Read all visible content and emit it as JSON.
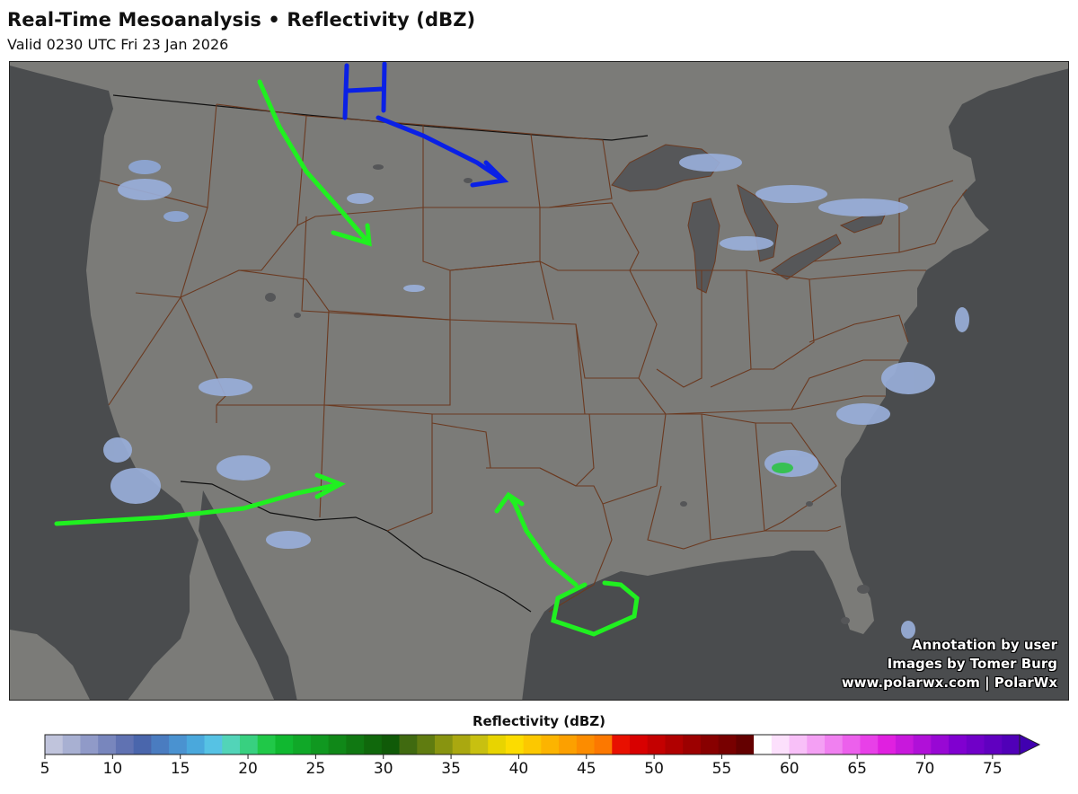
{
  "header": {
    "title": "Real-Time Mesoanalysis • Reflectivity (dBZ)",
    "subtitle": "Valid 0230 UTC Fri 23 Jan 2026"
  },
  "map": {
    "region": "Continental United States",
    "land_color": "#7b7b78",
    "water_color": "#4a4c4e",
    "border_color": "#6b3a21",
    "annotations": {
      "high_pressure_label": "H",
      "high_color": "#0a20e6",
      "arrow_color": "#20f020"
    }
  },
  "credits": {
    "line1": "Annotation by user",
    "line2": "Images by Tomer Burg",
    "line3": "www.polarwx.com | PolarWx"
  },
  "colorbar": {
    "title": "Reflectivity (dBZ)",
    "ticks": [
      "5",
      "10",
      "15",
      "20",
      "25",
      "30",
      "35",
      "40",
      "45",
      "50",
      "55",
      "60",
      "65",
      "70",
      "75"
    ],
    "min": 5,
    "max": 77,
    "colors": [
      "#c0c4dc",
      "#a8b0d2",
      "#909ac8",
      "#7886bd",
      "#6072b2",
      "#4a66ac",
      "#4a7cc0",
      "#4a92d0",
      "#4aa8dc",
      "#56c2e4",
      "#52d4b8",
      "#38d080",
      "#20c848",
      "#10b830",
      "#10a828",
      "#109820",
      "#108818",
      "#107812",
      "#10680c",
      "#105a08",
      "#406a10",
      "#607c10",
      "#889410",
      "#aaa810",
      "#c8c010",
      "#e8d400",
      "#fcdc00",
      "#fcc800",
      "#fcb400",
      "#fca000",
      "#fc8c00",
      "#fc7800",
      "#e81000",
      "#d80000",
      "#c40000",
      "#b00000",
      "#9c0000",
      "#880000",
      "#780000",
      "#640000",
      "#ffffff",
      "#fce0fc",
      "#f8c0f8",
      "#f4a0f4",
      "#f080f0",
      "#ec60ec",
      "#e840e8",
      "#e020e0",
      "#c818dc",
      "#b010d8",
      "#9808d4",
      "#8000d0",
      "#7000c8",
      "#6000c0",
      "#5000b8"
    ]
  }
}
